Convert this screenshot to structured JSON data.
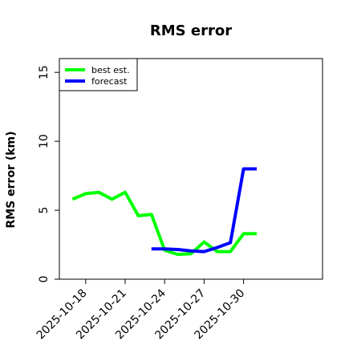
{
  "chart_data": {
    "type": "line",
    "title": "RMS error",
    "xlabel": "",
    "ylabel": "RMS error (km)",
    "x_tick_labels": [
      "2025-10-18",
      "2025-10-21",
      "2025-10-24",
      "2025-10-27",
      "2025-10-30"
    ],
    "x_ticks": [
      "2025-10-18",
      "2025-10-21",
      "2025-10-24",
      "2025-10-27",
      "2025-10-30"
    ],
    "xlim": [
      "2025-10-16",
      "2025-11-05"
    ],
    "y_tick_labels": [
      "0",
      "5",
      "10",
      "15"
    ],
    "y_ticks": [
      0,
      5,
      10,
      15
    ],
    "ylim": [
      0,
      16
    ],
    "grid": false,
    "legend_position": "top-left",
    "series": [
      {
        "name": "best est.",
        "color": "#00ff00",
        "x": [
          "2025-10-17",
          "2025-10-18",
          "2025-10-19",
          "2025-10-20",
          "2025-10-21",
          "2025-10-22",
          "2025-10-23",
          "2025-10-24",
          "2025-10-25",
          "2025-10-26",
          "2025-10-27",
          "2025-10-28",
          "2025-10-29",
          "2025-10-30",
          "2025-10-31"
        ],
        "values": [
          5.8,
          6.2,
          6.3,
          5.8,
          6.3,
          4.6,
          4.7,
          2.1,
          1.8,
          1.85,
          2.7,
          2.0,
          2.0,
          3.3,
          3.3
        ]
      },
      {
        "name": "forecast",
        "color": "#0000ff",
        "x": [
          "2025-10-23",
          "2025-10-24",
          "2025-10-25",
          "2025-10-26",
          "2025-10-27",
          "2025-10-28",
          "2025-10-29",
          "2025-10-30",
          "2025-10-31"
        ],
        "values": [
          2.2,
          2.2,
          2.15,
          2.05,
          2.0,
          2.3,
          2.65,
          8.0,
          8.0
        ]
      }
    ]
  }
}
